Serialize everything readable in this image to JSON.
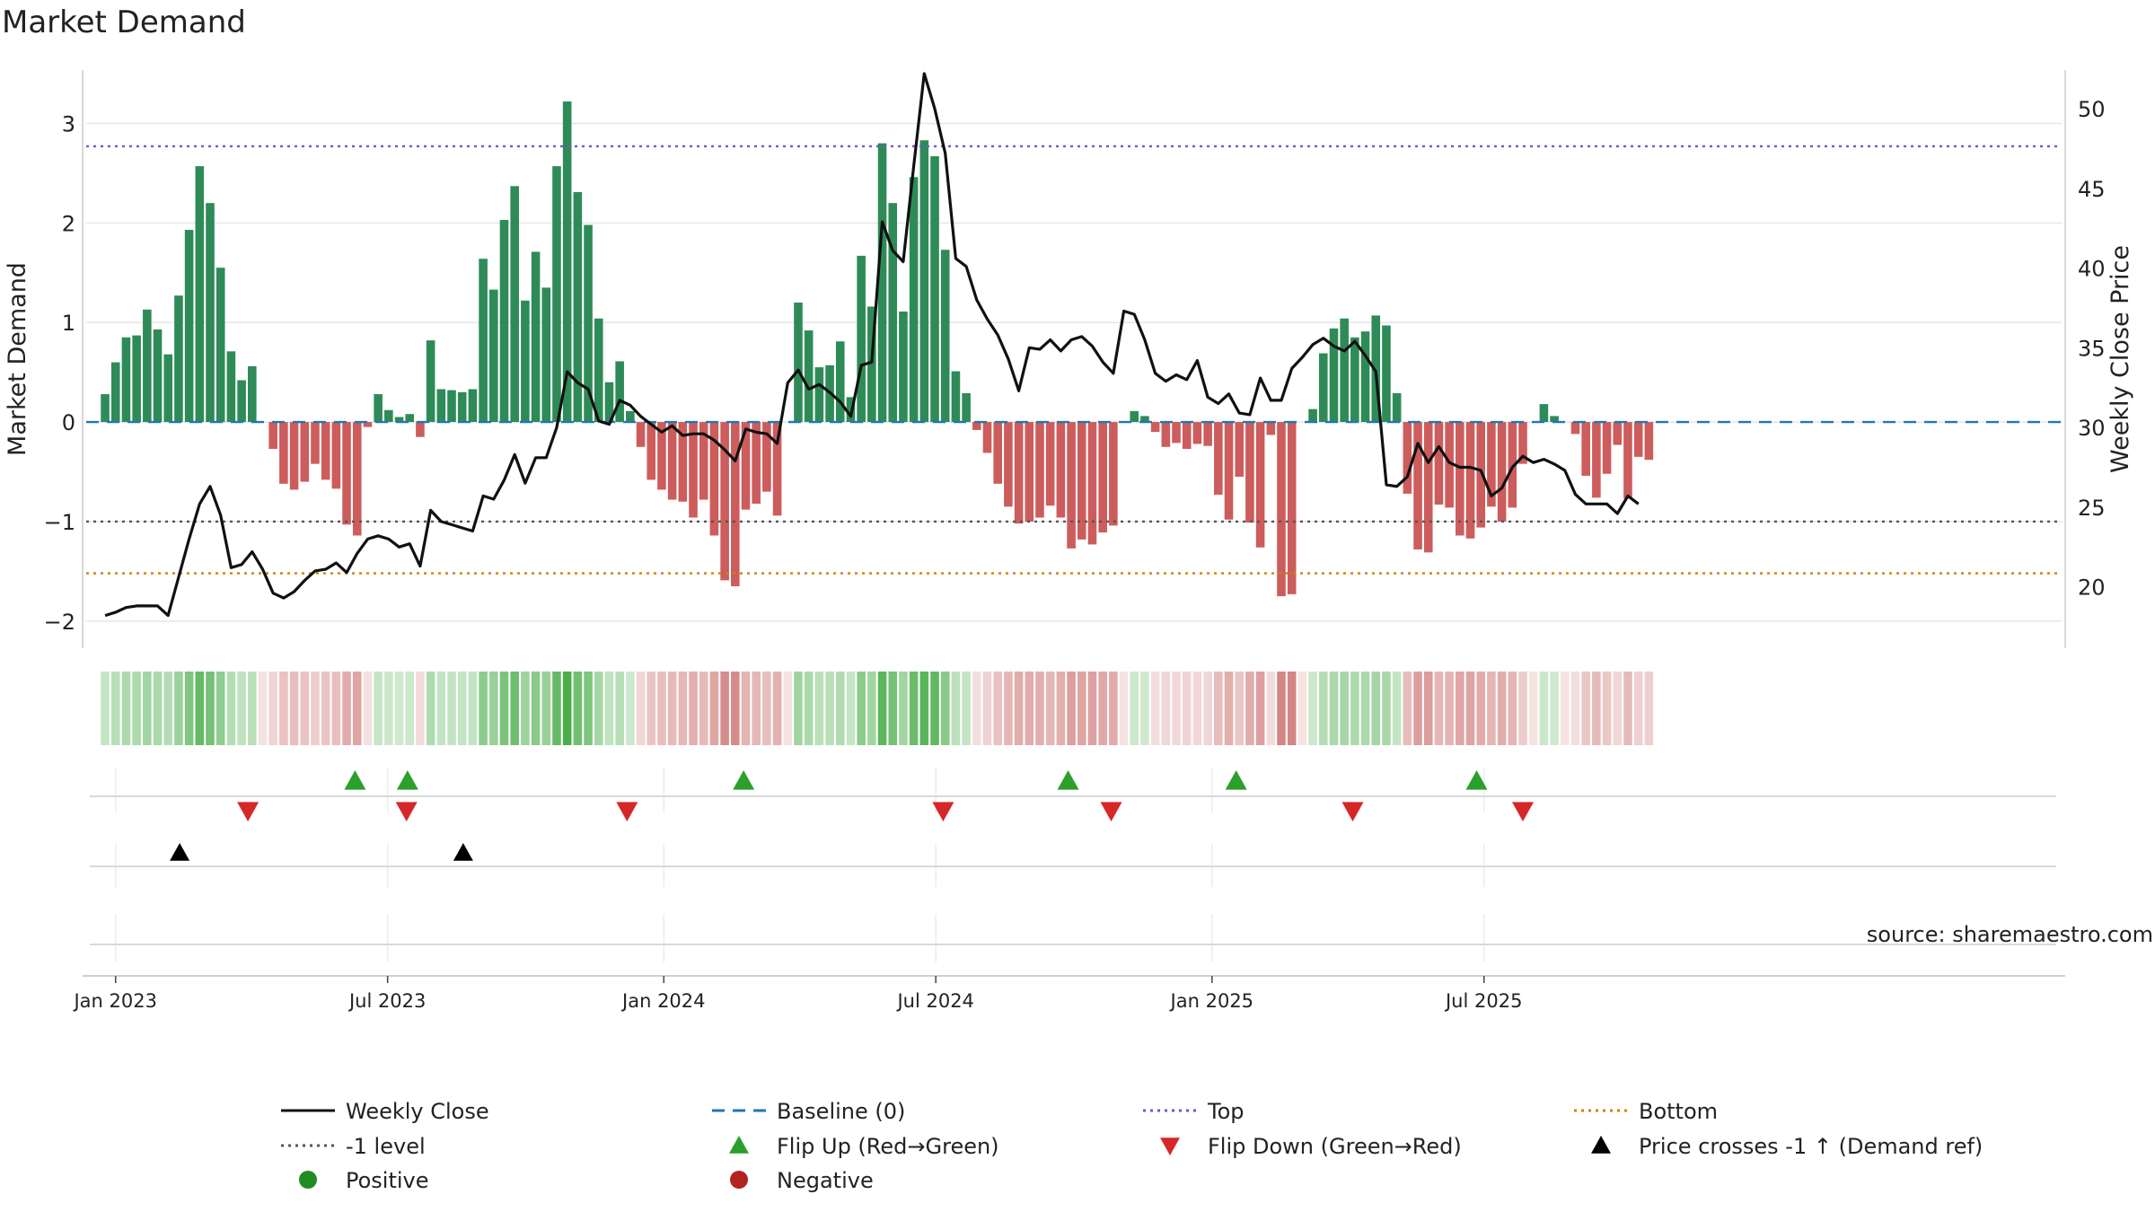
{
  "chart_data": {
    "type": "bar",
    "title": "Market Demand",
    "ylabel": "Market Demand",
    "y2label": "Weekly Close Price",
    "ylim": [
      -2.2,
      3.5
    ],
    "y2lim": [
      16.6,
      52.2
    ],
    "yticks": [
      -2,
      -1,
      0,
      1,
      2,
      3
    ],
    "yticklabels": [
      "−2",
      "−1",
      "0",
      "1",
      "2",
      "3"
    ],
    "y2ticks": [
      20,
      25,
      30,
      35,
      40,
      45,
      50
    ],
    "y2ticklabels": [
      "20",
      "25",
      "30",
      "35",
      "40",
      "45",
      "50"
    ],
    "xlim": [
      -1.8,
      186.3
    ],
    "xticks": [
      {
        "label": "Jan 2023",
        "week": 1
      },
      {
        "label": "Jul 2023",
        "week": 26.9
      },
      {
        "label": "Jan 2024",
        "week": 53.2
      },
      {
        "label": "Jul 2024",
        "week": 79.1
      },
      {
        "label": "Jan 2025",
        "week": 105.4
      },
      {
        "label": "Jul 2025",
        "week": 131.3
      }
    ],
    "reference_lines": {
      "baseline": 0,
      "top": 2.77,
      "minus_one": -1,
      "bottom": -1.52
    },
    "demand": [
      0.28,
      0.6,
      0.85,
      0.87,
      1.13,
      0.93,
      0.68,
      1.27,
      1.93,
      2.57,
      2.2,
      1.55,
      0.71,
      0.42,
      0.56,
      0,
      -0.27,
      -0.62,
      -0.68,
      -0.6,
      -0.42,
      -0.58,
      -0.67,
      -1.03,
      -1.14,
      -0.05,
      0.28,
      0.12,
      0.05,
      0.08,
      -0.15,
      0.82,
      0.33,
      0.32,
      0.3,
      0.33,
      1.64,
      1.33,
      2.03,
      2.37,
      1.22,
      1.71,
      1.35,
      2.57,
      3.22,
      2.31,
      1.98,
      1.04,
      0.4,
      0.61,
      0.11,
      -0.25,
      -0.58,
      -0.68,
      -0.78,
      -0.8,
      -0.96,
      -0.78,
      -1.14,
      -1.59,
      -1.65,
      -0.88,
      -0.82,
      -0.7,
      -0.94,
      0,
      1.2,
      0.92,
      0.55,
      0.57,
      0.81,
      0.25,
      1.67,
      1.16,
      2.8,
      2.2,
      1.11,
      2.46,
      2.83,
      2.67,
      1.73,
      0.51,
      0.29,
      -0.08,
      -0.31,
      -0.62,
      -0.85,
      -1.02,
      -1.0,
      -0.96,
      -0.84,
      -0.96,
      -1.27,
      -1.18,
      -1.23,
      -1.11,
      -1.04,
      0,
      0.11,
      0.06,
      -0.1,
      -0.25,
      -0.21,
      -0.27,
      -0.22,
      -0.24,
      -0.73,
      -0.98,
      -0.55,
      -1.01,
      -1.26,
      -0.13,
      -1.75,
      -1.73,
      0,
      0.13,
      0.69,
      0.94,
      1.04,
      0.85,
      0.91,
      1.07,
      0.97,
      0.29,
      -0.72,
      -1.28,
      -1.31,
      -0.83,
      -0.86,
      -1.14,
      -1.17,
      -1.06,
      -0.85,
      -1.0,
      -0.86,
      -0.42,
      0,
      0.18,
      0.06,
      0,
      -0.12,
      -0.54,
      -0.76,
      -0.52,
      -0.23,
      -0.77,
      -0.35,
      -0.38
    ],
    "weekly_close": [
      18.2,
      18.4,
      18.7,
      18.8,
      18.8,
      18.8,
      18.2,
      20.6,
      23.0,
      25.2,
      26.3,
      24.5,
      21.2,
      21.4,
      22.2,
      21.1,
      19.6,
      19.3,
      19.7,
      20.4,
      21.0,
      21.1,
      21.5,
      20.9,
      22.1,
      23.0,
      23.2,
      23.0,
      22.5,
      22.7,
      21.3,
      24.8,
      24.1,
      23.9,
      23.7,
      23.5,
      25.7,
      25.5,
      26.7,
      28.3,
      26.5,
      28.1,
      28.1,
      30.0,
      33.5,
      32.8,
      32.4,
      30.4,
      30.2,
      31.7,
      31.4,
      30.7,
      30.2,
      29.7,
      30.1,
      29.5,
      29.6,
      29.6,
      29.2,
      28.6,
      27.9,
      29.9,
      29.7,
      29.6,
      29.0,
      32.8,
      33.6,
      32.4,
      32.7,
      32.2,
      31.6,
      30.7,
      33.9,
      34.1,
      42.9,
      41.1,
      40.4,
      46.4,
      52.2,
      50.0,
      47.2,
      40.6,
      40.1,
      38.0,
      36.8,
      35.8,
      34.3,
      32.3,
      35.0,
      34.9,
      35.5,
      34.8,
      35.5,
      35.7,
      35.1,
      34.1,
      33.4,
      37.3,
      37.1,
      35.5,
      33.4,
      32.9,
      33.3,
      33.0,
      34.2,
      31.9,
      31.5,
      32.1,
      30.9,
      30.8,
      33.1,
      31.7,
      31.7,
      33.7,
      34.4,
      35.2,
      35.6,
      35.1,
      34.8,
      35.4,
      34.5,
      33.5,
      26.4,
      26.3,
      26.9,
      29.0,
      27.8,
      28.8,
      27.8,
      27.5,
      27.5,
      27.3,
      25.7,
      26.2,
      27.5,
      28.2,
      27.8,
      28.0,
      27.7,
      27.3,
      25.8,
      25.2,
      25.2,
      25.2,
      24.6,
      25.7,
      25.2
    ],
    "flip_up_weeks": [
      23.8,
      28.8,
      60.8,
      91.7,
      107.7,
      130.6
    ],
    "flip_down_weeks": [
      13.6,
      28.7,
      49.7,
      79.8,
      95.8,
      118.8,
      135.0
    ],
    "price_cross_weeks": [
      7.1,
      34.1
    ],
    "legend": [
      "Weekly Close",
      "Baseline (0)",
      "Top",
      "Bottom",
      "-1 level",
      "Flip Up (Red→Green)",
      "Flip Down (Green→Red)",
      "Price crosses -1 ↑ (Demand ref)",
      "Positive",
      "Negative"
    ],
    "annotation": "source: sharemaestro.com",
    "colors": {
      "positive_bar": "#2e8b57",
      "negative_bar": "#cd5c5c",
      "close": "#111111",
      "baseline": "#1f77b4",
      "top": "#6a5acd",
      "minus_one": "#555555",
      "bottom": "#cc8400",
      "flip_up": "#2ca02c",
      "flip_down": "#d62728",
      "cross": "#000000",
      "positive_dot": "#228b22",
      "negative_dot": "#b22222",
      "grid": "#e6e6e6",
      "axis": "#cccccc"
    }
  }
}
